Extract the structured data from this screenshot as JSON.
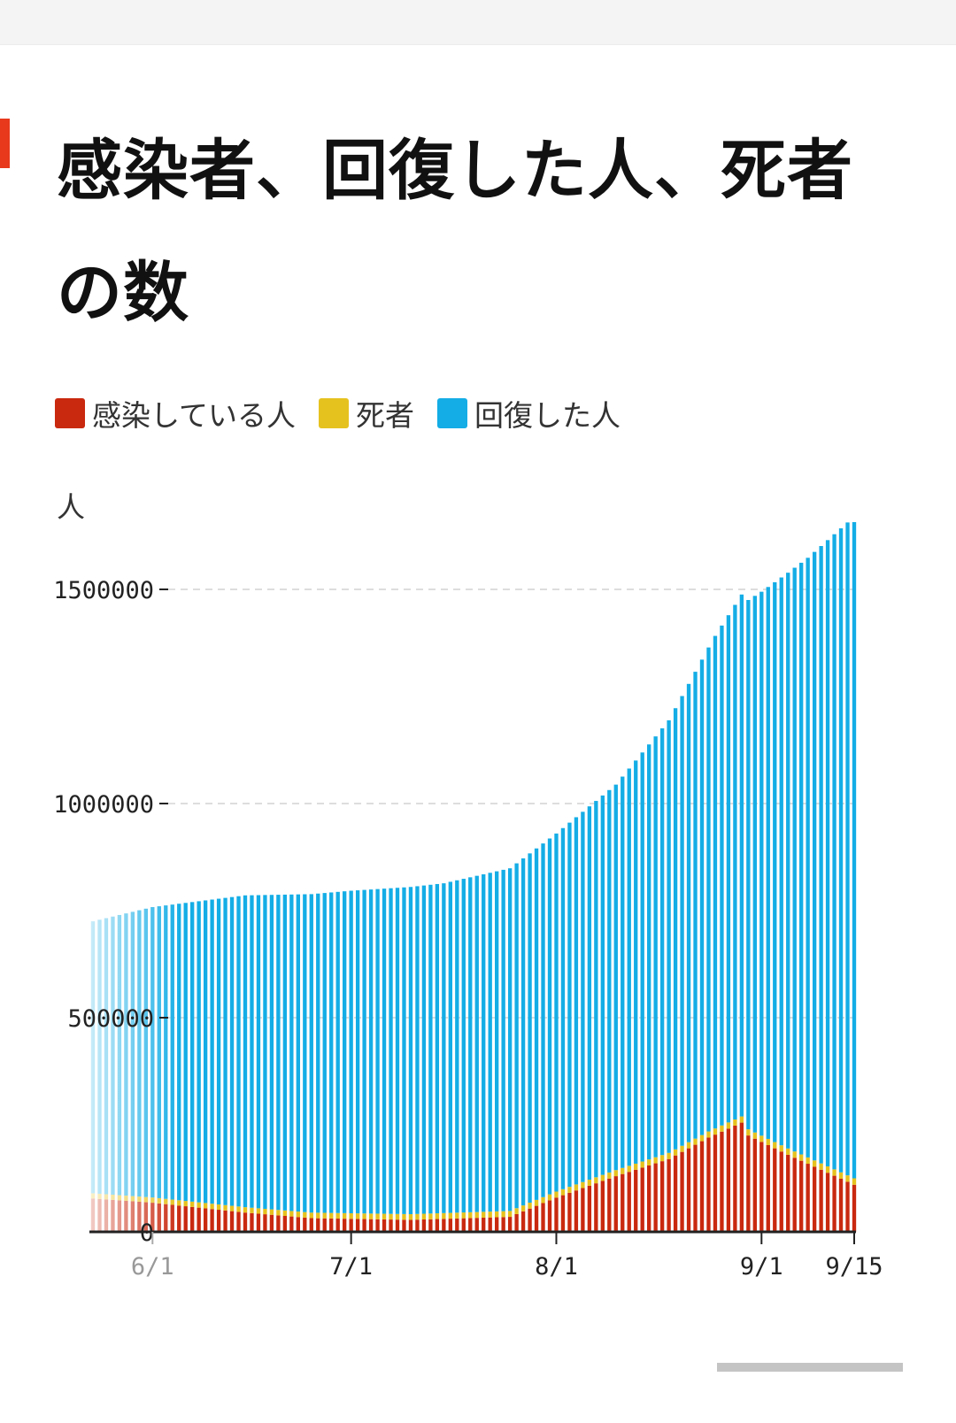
{
  "title": "感染者、回復した人、死者の数",
  "legend": [
    {
      "label": "感染している人",
      "color": "#c9290f"
    },
    {
      "label": "死者",
      "color": "#e6c21f"
    },
    {
      "label": "回復した人",
      "color": "#14ade6"
    }
  ],
  "chart_data": {
    "type": "bar",
    "stacked": true,
    "ylabel": "人",
    "ylim": [
      0,
      1700000
    ],
    "yticks": [
      {
        "value": 0,
        "label": "0"
      },
      {
        "value": 500000,
        "label": "500000"
      },
      {
        "value": 1000000,
        "label": "1000000"
      },
      {
        "value": 1500000,
        "label": "1500000"
      }
    ],
    "xrange": [
      "2020-05-23",
      "2020-09-15"
    ],
    "xticks": [
      {
        "date": "2020-06-01",
        "label": "6/1",
        "faded": true
      },
      {
        "date": "2020-07-01",
        "label": "7/1"
      },
      {
        "date": "2020-08-01",
        "label": "8/1"
      },
      {
        "date": "2020-09-01",
        "label": "9/1"
      },
      {
        "date": "2020-09-15",
        "label": "9/15"
      }
    ],
    "grid": "dashed-horizontal",
    "series": [
      {
        "name": "感染している人",
        "color": "#c9290f",
        "points": [
          [
            "2020-05-23",
            78000
          ],
          [
            "2020-06-01",
            68000
          ],
          [
            "2020-06-15",
            45000
          ],
          [
            "2020-06-25",
            32000
          ],
          [
            "2020-07-10",
            28000
          ],
          [
            "2020-07-25",
            35000
          ],
          [
            "2020-08-01",
            80000
          ],
          [
            "2020-08-10",
            130000
          ],
          [
            "2020-08-18",
            170000
          ],
          [
            "2020-08-24",
            220000
          ],
          [
            "2020-08-29",
            255000
          ],
          [
            "2020-08-30",
            225000
          ],
          [
            "2020-09-05",
            180000
          ],
          [
            "2020-09-15",
            110000
          ]
        ]
      },
      {
        "name": "死者",
        "color": "#e6c21f",
        "points": [
          [
            "2020-05-23",
            12000
          ],
          [
            "2020-07-01",
            13000
          ],
          [
            "2020-08-01",
            14000
          ],
          [
            "2020-09-01",
            14500
          ],
          [
            "2020-09-15",
            15000
          ]
        ]
      },
      {
        "name": "回復した人",
        "color": "#14ade6",
        "points": [
          [
            "2020-05-23",
            635000
          ],
          [
            "2020-06-01",
            678000
          ],
          [
            "2020-06-15",
            728000
          ],
          [
            "2020-07-01",
            753000
          ],
          [
            "2020-07-15",
            770000
          ],
          [
            "2020-07-25",
            800000
          ],
          [
            "2020-08-01",
            836000
          ],
          [
            "2020-08-10",
            900000
          ],
          [
            "2020-08-18",
            1010000
          ],
          [
            "2020-08-25",
            1150000
          ],
          [
            "2020-09-01",
            1270000
          ],
          [
            "2020-09-08",
            1400000
          ],
          [
            "2020-09-15",
            1545000
          ]
        ]
      }
    ]
  }
}
